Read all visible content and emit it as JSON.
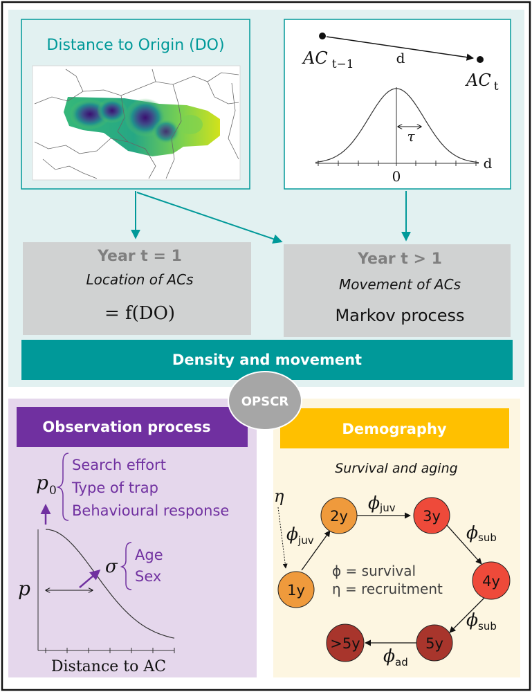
{
  "top_panel": {
    "do_title": "Distance to Origin (DO)",
    "movement": {
      "ac_prev_base": "AC",
      "ac_prev_sub": "t−1",
      "ac_cur_base": "AC",
      "ac_cur_sub": "t",
      "distance": "d",
      "tau": "τ",
      "axis_zero": "0",
      "axis_label": "d"
    },
    "year1": {
      "title": "Year t = 1",
      "subtitle": "Location of ACs",
      "formula": "= f(DO)"
    },
    "year2": {
      "title": "Year t > 1",
      "subtitle": "Movement of ACs",
      "formula": "Markov process"
    },
    "banner": "Density and movement"
  },
  "hub_label": "OPSCR",
  "observation": {
    "header": "Observation process",
    "p0_base": "p",
    "p0_sub": "0",
    "p0_items": [
      "Search effort",
      "Type of trap",
      "Behavioural response"
    ],
    "sigma": "σ",
    "sigma_items": [
      "Age",
      "Sex"
    ],
    "p_label": "p",
    "x_label": "Distance to AC"
  },
  "demography": {
    "header": "Demography",
    "subtitle": "Survival and aging",
    "eta": "η",
    "nodes": [
      "1y",
      "2y",
      "3y",
      "4y",
      "5y",
      ">5y"
    ],
    "phi_sym": "ϕ",
    "phi_juv_sub": "juv",
    "phi_sub_sub": "sub",
    "phi_ad_sub": "ad",
    "legend": [
      "ϕ = survival",
      "η = recruitment"
    ],
    "colors": {
      "node_1y": "#ef9a3c",
      "node_2y": "#ef9a3c",
      "node_3y": "#ee4a3a",
      "node_4y": "#ee4a3a",
      "node_5y": "#a8352c",
      "node_gt5y": "#a8352c"
    }
  },
  "colors": {
    "teal": "#009999",
    "top_bg": "#e2f1f1",
    "obs_bg": "#e5d7ec",
    "obs_header": "#7030a0",
    "demo_bg": "#fdf6e1",
    "demo_header": "#ffc000",
    "gray_box": "#d0d2d2",
    "hub": "#a6a6a6"
  }
}
